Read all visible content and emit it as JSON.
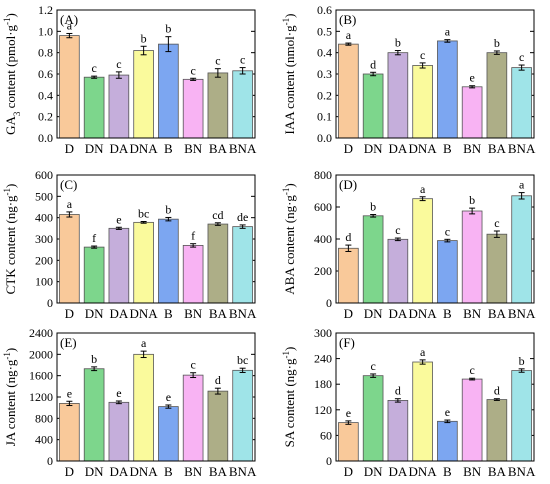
{
  "colors": {
    "D": "#F9C99A",
    "DN": "#7DD68C",
    "DA": "#C5AEDB",
    "DNA": "#FAFA9C",
    "B": "#7CA6F1",
    "BN": "#F8B3F3",
    "BA": "#ADAE87",
    "BNA": "#9FE4E8"
  },
  "chart_data": [
    {
      "type": "bar",
      "panel_label": "(A)",
      "ylabel": "GA₃ content (pmol·g⁻¹)",
      "categories": [
        "D",
        "DN",
        "DA",
        "DNA",
        "B",
        "BN",
        "BA",
        "BNA"
      ],
      "values": [
        0.96,
        0.57,
        0.59,
        0.82,
        0.88,
        0.55,
        0.61,
        0.63
      ],
      "errors": [
        0.02,
        0.01,
        0.03,
        0.04,
        0.07,
        0.01,
        0.04,
        0.03
      ],
      "letters": [
        "a",
        "c",
        "c",
        "b",
        "b",
        "c",
        "c",
        "c"
      ],
      "ylim": [
        0,
        1.2
      ],
      "yticks": [
        "0.0",
        "0.2",
        "0.4",
        "0.6",
        "0.8",
        "1.0",
        "1.2"
      ]
    },
    {
      "type": "bar",
      "panel_label": "(B)",
      "ylabel": "IAA content (nmol·g⁻¹)",
      "categories": [
        "D",
        "DN",
        "DA",
        "DNA",
        "B",
        "BN",
        "BA",
        "BNA"
      ],
      "values": [
        0.44,
        0.3,
        0.4,
        0.34,
        0.455,
        0.24,
        0.4,
        0.33
      ],
      "errors": [
        0.005,
        0.008,
        0.01,
        0.012,
        0.006,
        0.005,
        0.008,
        0.012
      ],
      "letters": [
        "a",
        "d",
        "b",
        "c",
        "a",
        "e",
        "b",
        "c"
      ],
      "ylim": [
        0,
        0.6
      ],
      "yticks": [
        "0.0",
        "0.1",
        "0.2",
        "0.3",
        "0.4",
        "0.5",
        "0.6"
      ]
    },
    {
      "type": "bar",
      "panel_label": "(C)",
      "ylabel": "CTK content (ng·g⁻¹)",
      "categories": [
        "D",
        "DN",
        "DA",
        "DNA",
        "B",
        "BN",
        "BA",
        "BNA"
      ],
      "values": [
        415,
        262,
        350,
        378,
        393,
        270,
        370,
        358
      ],
      "errors": [
        12,
        5,
        5,
        4,
        8,
        8,
        6,
        8
      ],
      "letters": [
        "a",
        "f",
        "e",
        "bc",
        "b",
        "f",
        "cd",
        "de"
      ],
      "ylim": [
        0,
        600
      ],
      "yticks": [
        "0",
        "100",
        "200",
        "300",
        "400",
        "500",
        "600"
      ]
    },
    {
      "type": "bar",
      "panel_label": "(D)",
      "ylabel": "ABA content (ng·g⁻¹)",
      "categories": [
        "D",
        "DN",
        "DA",
        "DNA",
        "B",
        "BN",
        "BA",
        "BNA"
      ],
      "values": [
        342,
        545,
        398,
        652,
        390,
        575,
        430,
        670
      ],
      "errors": [
        20,
        8,
        8,
        12,
        8,
        18,
        20,
        20
      ],
      "letters": [
        "d",
        "b",
        "c",
        "a",
        "c",
        "b",
        "c",
        "a"
      ],
      "ylim": [
        0,
        800
      ],
      "yticks": [
        "0",
        "200",
        "400",
        "600",
        "800"
      ]
    },
    {
      "type": "bar",
      "panel_label": "(E)",
      "ylabel": "JA content (ng·g⁻¹)",
      "categories": [
        "D",
        "DN",
        "DA",
        "DNA",
        "B",
        "BN",
        "BA",
        "BNA"
      ],
      "values": [
        1080,
        1730,
        1100,
        2000,
        1020,
        1610,
        1310,
        1700
      ],
      "errors": [
        40,
        35,
        25,
        60,
        30,
        45,
        55,
        40
      ],
      "letters": [
        "e",
        "b",
        "e",
        "a",
        "e",
        "c",
        "d",
        "bc"
      ],
      "ylim": [
        0,
        2400
      ],
      "yticks": [
        "0",
        "400",
        "800",
        "1200",
        "1600",
        "2000",
        "2400"
      ]
    },
    {
      "type": "bar",
      "panel_label": "(F)",
      "ylabel": "SA content (ng·g⁻¹)",
      "categories": [
        "D",
        "DN",
        "DA",
        "DNA",
        "B",
        "BN",
        "BA",
        "BNA"
      ],
      "values": [
        90,
        200,
        142,
        232,
        93,
        192,
        144,
        212
      ],
      "errors": [
        4,
        4,
        4,
        5,
        3,
        2,
        2,
        4
      ],
      "letters": [
        "e",
        "c",
        "d",
        "a",
        "e",
        "c",
        "d",
        "b"
      ],
      "ylim": [
        0,
        300
      ],
      "yticks": [
        "0",
        "60",
        "120",
        "180",
        "240",
        "300"
      ]
    }
  ]
}
